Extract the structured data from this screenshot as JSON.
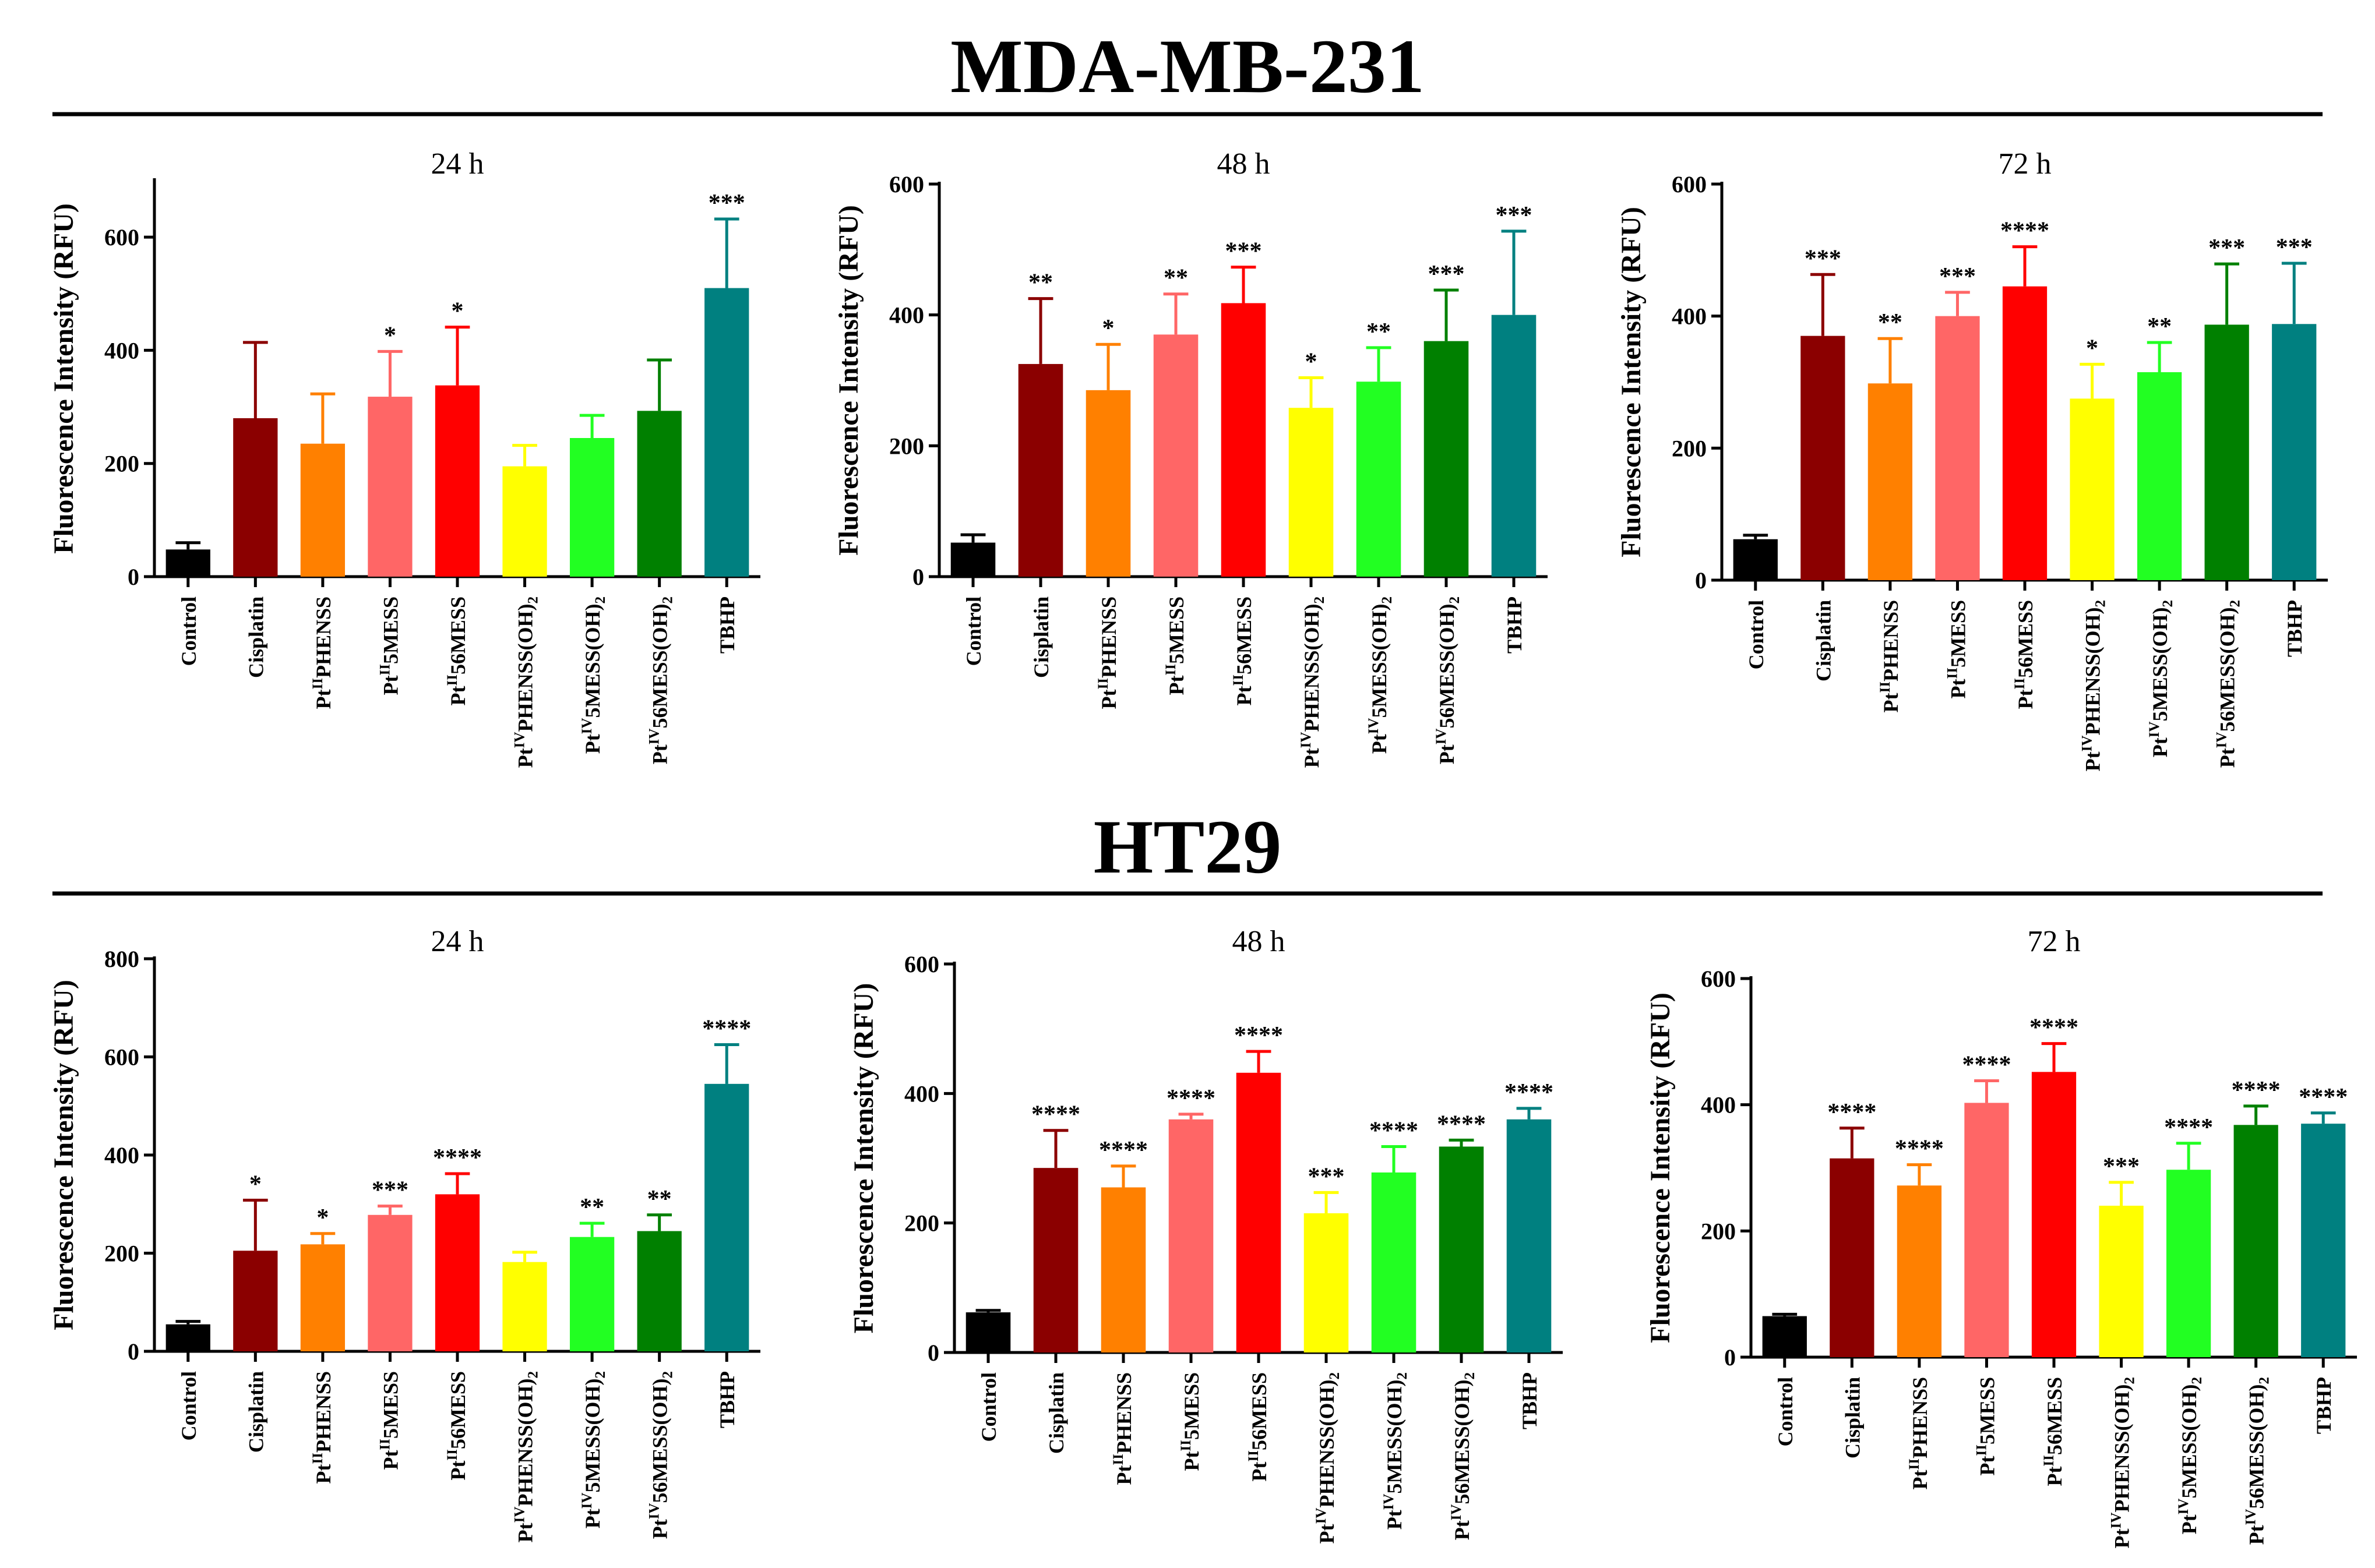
{
  "sections": [
    {
      "title": "MDA-MB-231"
    },
    {
      "title": "HT29"
    }
  ],
  "categories": [
    {
      "base": "Control",
      "sup": "",
      "tail": "",
      "sub": ""
    },
    {
      "base": "Cisplatin",
      "sup": "",
      "tail": "",
      "sub": ""
    },
    {
      "base": "Pt",
      "sup": "II",
      "tail": "PHENSS",
      "sub": ""
    },
    {
      "base": "Pt",
      "sup": "II",
      "tail": "5MESS",
      "sub": ""
    },
    {
      "base": "Pt",
      "sup": "II",
      "tail": "56MESS",
      "sub": ""
    },
    {
      "base": "Pt",
      "sup": "IV",
      "tail": "PHENSS(OH)",
      "sub": "2"
    },
    {
      "base": "Pt",
      "sup": "IV",
      "tail": "5MESS(OH)",
      "sub": "2"
    },
    {
      "base": "Pt",
      "sup": "IV",
      "tail": "56MESS(OH)",
      "sub": "2"
    },
    {
      "base": "TBHP",
      "sup": "",
      "tail": "",
      "sub": ""
    }
  ],
  "colors": [
    "#000000",
    "#8b0000",
    "#ff8000",
    "#ff6666",
    "#ff0000",
    "#ffff00",
    "#22ff22",
    "#008000",
    "#008080"
  ],
  "chart_data": [
    {
      "type": "bar",
      "section": "MDA-MB-231",
      "title": "24 h",
      "ylabel": "Fluorescence Intensity (RFU)",
      "ylim": [
        0,
        700
      ],
      "yticks": [
        0,
        200,
        400,
        600
      ],
      "values": [
        48,
        280,
        235,
        318,
        338,
        195,
        245,
        293,
        510
      ],
      "errors": [
        12,
        134,
        88,
        80,
        103,
        37,
        40,
        90,
        122
      ],
      "sig": [
        "",
        "",
        "",
        "*",
        "*",
        "",
        "",
        "",
        "***"
      ]
    },
    {
      "type": "bar",
      "section": "MDA-MB-231",
      "title": "48 h",
      "ylabel": "Fluorescence Intensity (RFU)",
      "ylim": [
        0,
        600
      ],
      "yticks": [
        0,
        200,
        400,
        600
      ],
      "values": [
        52,
        325,
        285,
        370,
        418,
        258,
        298,
        360,
        400
      ],
      "errors": [
        12,
        100,
        70,
        62,
        55,
        46,
        52,
        78,
        128
      ],
      "sig": [
        "",
        "**",
        "*",
        "**",
        "***",
        "*",
        "**",
        "***",
        "***"
      ]
    },
    {
      "type": "bar",
      "section": "MDA-MB-231",
      "title": "72 h",
      "ylabel": "Fluorescence Intensity (RFU)",
      "ylim": [
        0,
        600
      ],
      "yticks": [
        0,
        200,
        400,
        600
      ],
      "values": [
        62,
        370,
        298,
        400,
        445,
        275,
        315,
        387,
        388
      ],
      "errors": [
        6,
        93,
        68,
        36,
        60,
        52,
        45,
        92,
        92
      ],
      "sig": [
        "",
        "***",
        "**",
        "***",
        "****",
        "*",
        "**",
        "***",
        "***"
      ]
    },
    {
      "type": "bar",
      "section": "HT29",
      "title": "24 h",
      "ylabel": "Fluorescence Intensity (RFU)",
      "ylim": [
        0,
        800
      ],
      "yticks": [
        0,
        200,
        400,
        600,
        800
      ],
      "values": [
        55,
        205,
        218,
        278,
        320,
        182,
        233,
        245,
        545
      ],
      "errors": [
        6,
        103,
        22,
        18,
        42,
        20,
        28,
        33,
        80
      ],
      "sig": [
        "",
        "*",
        "*",
        "***",
        "****",
        "",
        "**",
        "**",
        "****"
      ]
    },
    {
      "type": "bar",
      "section": "HT29",
      "title": "48 h",
      "ylabel": "Fluorescence Intensity (RFU)",
      "ylim": [
        0,
        600
      ],
      "yticks": [
        0,
        200,
        400,
        600
      ],
      "values": [
        62,
        285,
        255,
        360,
        432,
        215,
        278,
        318,
        360
      ],
      "errors": [
        3,
        58,
        33,
        8,
        33,
        32,
        40,
        10,
        17
      ],
      "sig": [
        "",
        "****",
        "****",
        "****",
        "****",
        "***",
        "****",
        "****",
        "****"
      ]
    },
    {
      "type": "bar",
      "section": "HT29",
      "title": "72 h",
      "ylabel": "Fluorescence Intensity (RFU)",
      "ylim": [
        0,
        600
      ],
      "yticks": [
        0,
        200,
        400,
        600
      ],
      "values": [
        65,
        315,
        272,
        403,
        452,
        240,
        297,
        368,
        370
      ],
      "errors": [
        3,
        48,
        33,
        35,
        45,
        37,
        42,
        30,
        17
      ],
      "sig": [
        "",
        "****",
        "****",
        "****",
        "****",
        "***",
        "****",
        "****",
        "****"
      ]
    }
  ]
}
